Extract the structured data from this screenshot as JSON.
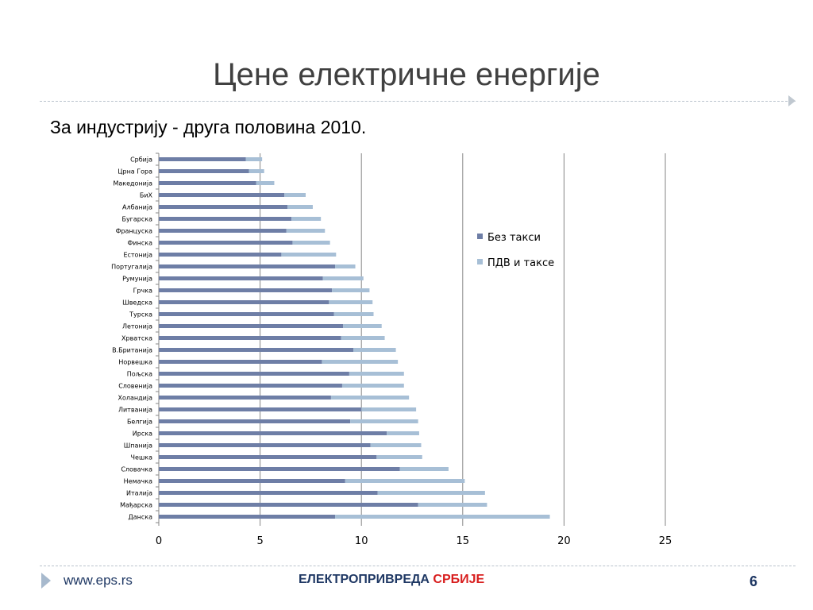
{
  "slide": {
    "title": "Цене електричне енергије",
    "subtitle": "За индустрију  - друга половина 2010."
  },
  "footer": {
    "url": "www.eps.rs",
    "brand_part1": "ЕЛЕКТРОПРИВРЕДА",
    "brand_part2": "СРБИЈЕ",
    "page_number": "6"
  },
  "colors": {
    "series1": "#6e7ea6",
    "series2": "#a7bfd6",
    "gridline": "#868686",
    "axis": "#868686"
  },
  "chart_data": {
    "type": "bar",
    "orientation": "horizontal",
    "stacked": true,
    "xlim": [
      0,
      25
    ],
    "xticks": [
      0,
      5,
      10,
      15,
      20,
      25
    ],
    "grid": true,
    "legend_position": "right",
    "categories": [
      "Србија",
      "Црна Гора",
      "Македонија",
      "БиХ",
      "Албанија",
      "Бугарска",
      "Француска",
      "Финска",
      "Естонија",
      "Португалија",
      "Румунија",
      "Грчка",
      "Шведска",
      "Турска",
      "Летонија",
      "Хрватска",
      "В.Британија",
      "Норвешка",
      "Пољска",
      "Словенија",
      "Холандија",
      "Литванија",
      "Белгија",
      "Ирска",
      "Шпанија",
      "Чешка",
      "Словачка",
      "Немачка",
      "Италија",
      "Мађарска",
      "Данска"
    ],
    "series": [
      {
        "name": "Без такси",
        "values": [
          4.3,
          4.45,
          4.8,
          6.2,
          6.35,
          6.55,
          6.3,
          6.6,
          6.05,
          8.7,
          8.1,
          8.55,
          8.4,
          8.65,
          9.1,
          9.0,
          9.6,
          8.05,
          9.4,
          9.05,
          8.5,
          10.0,
          9.45,
          11.25,
          10.45,
          10.75,
          11.9,
          9.2,
          10.8,
          12.8,
          8.7
        ]
      },
      {
        "name": "ПДВ и таксе",
        "values": [
          0.8,
          0.75,
          0.9,
          1.05,
          1.25,
          1.45,
          1.9,
          1.85,
          2.7,
          1.0,
          2.0,
          1.85,
          2.15,
          1.95,
          1.9,
          2.15,
          2.1,
          3.75,
          2.7,
          3.05,
          3.85,
          2.7,
          3.35,
          1.6,
          2.5,
          2.25,
          2.4,
          5.9,
          5.3,
          3.4,
          10.6
        ]
      }
    ]
  }
}
